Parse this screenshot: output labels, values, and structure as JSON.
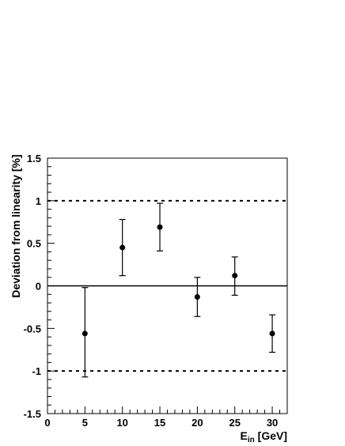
{
  "chart_data": {
    "type": "scatter",
    "title": "",
    "xlabel": {
      "main": "E",
      "sub": "in",
      "unit": " [GeV]"
    },
    "ylabel": "Deviation from linearity [%]",
    "xlim": [
      0,
      32
    ],
    "ylim": [
      -1.5,
      1.5
    ],
    "x_ticks": [
      0,
      5,
      10,
      15,
      20,
      25,
      30
    ],
    "x_tick_labels": [
      "0",
      "5",
      "10",
      "15",
      "20",
      "25",
      "30"
    ],
    "y_ticks": [
      -1.5,
      -1,
      -0.5,
      0,
      0.5,
      1,
      1.5
    ],
    "y_tick_labels": [
      "-1.5",
      "-1",
      "-0.5",
      "0",
      "0.5",
      "1",
      "1.5"
    ],
    "grid": false,
    "reference_lines": [
      {
        "y": 1,
        "style": "dotted"
      },
      {
        "y": 0,
        "style": "solid"
      },
      {
        "y": -1,
        "style": "dotted"
      }
    ],
    "series": [
      {
        "points": [
          {
            "x": 5,
            "y": -0.56,
            "y_low": -1.07,
            "y_high": -0.02
          },
          {
            "x": 10,
            "y": 0.45,
            "y_low": 0.12,
            "y_high": 0.78
          },
          {
            "x": 15,
            "y": 0.69,
            "y_low": 0.41,
            "y_high": 0.97
          },
          {
            "x": 20,
            "y": -0.13,
            "y_low": -0.36,
            "y_high": 0.1
          },
          {
            "x": 25,
            "y": 0.12,
            "y_low": -0.11,
            "y_high": 0.34
          },
          {
            "x": 30,
            "y": -0.56,
            "y_low": -0.78,
            "y_high": -0.34
          }
        ]
      }
    ]
  }
}
